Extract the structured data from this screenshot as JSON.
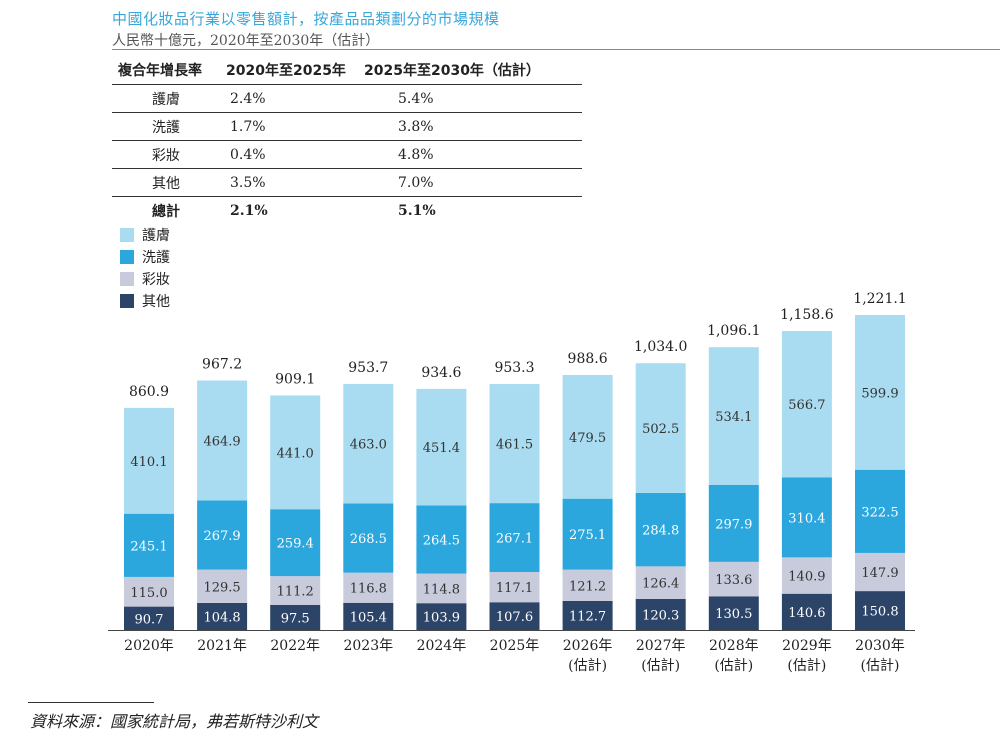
{
  "title": "中國化妝品行業以零售額計，按產品品類劃分的市場規模",
  "subtitle": "人民幣十億元，2020年至2030年（估計）",
  "cagr_table": {
    "header": [
      "複合年增長率",
      "2020年至2025年",
      "2025年至2030年（估計）"
    ],
    "rows": [
      {
        "category": "護膚",
        "p1": "2.4%",
        "p2": "5.4%"
      },
      {
        "category": "洗護",
        "p1": "1.7%",
        "p2": "3.8%"
      },
      {
        "category": "彩妝",
        "p1": "0.4%",
        "p2": "4.8%"
      },
      {
        "category": "其他",
        "p1": "3.5%",
        "p2": "7.0%"
      }
    ],
    "total": {
      "category": "總計",
      "p1": "2.1%",
      "p2": "5.1%"
    }
  },
  "source": "資料來源：國家統計局，弗若斯特沙利文",
  "colors": {
    "skincare": "#a9dcf0",
    "haircare": "#2ba7de",
    "makeup": "#c8cbdc",
    "others": "#2b4468"
  },
  "chart_data": {
    "type": "bar",
    "stacked": true,
    "categories": [
      "2020年",
      "2021年",
      "2022年",
      "2023年",
      "2024年",
      "2025年",
      "2026年\n(估計)",
      "2027年\n(估計)",
      "2028年\n(估計)",
      "2029年\n(估計)",
      "2030年\n(估計)"
    ],
    "series": [
      {
        "name": "其他",
        "color_key": "others",
        "values": [
          90.7,
          104.8,
          97.5,
          105.4,
          103.9,
          107.6,
          112.7,
          120.3,
          130.5,
          140.6,
          150.8
        ]
      },
      {
        "name": "彩妝",
        "color_key": "makeup",
        "values": [
          115.0,
          129.5,
          111.2,
          116.8,
          114.8,
          117.1,
          121.2,
          126.4,
          133.6,
          140.9,
          147.9
        ]
      },
      {
        "name": "洗護",
        "color_key": "haircare",
        "values": [
          245.1,
          267.9,
          259.4,
          268.5,
          264.5,
          267.1,
          275.1,
          284.8,
          297.9,
          310.4,
          322.5
        ]
      },
      {
        "name": "護膚",
        "color_key": "skincare",
        "values": [
          410.1,
          464.9,
          441.0,
          463.0,
          451.4,
          461.5,
          479.5,
          502.5,
          534.1,
          566.7,
          599.9
        ]
      }
    ],
    "totals": [
      "860.9",
      "967.2",
      "909.1",
      "953.7",
      "934.6",
      "953.3",
      "988.6",
      "1,034.0",
      "1,096.1",
      "1,158.6",
      "1,221.1"
    ],
    "legend_order": [
      "護膚",
      "洗護",
      "彩妝",
      "其他"
    ],
    "legend_position": "top-left",
    "ylim": [
      0,
      1250
    ],
    "xlabel": "",
    "ylabel": "",
    "grid": false
  }
}
